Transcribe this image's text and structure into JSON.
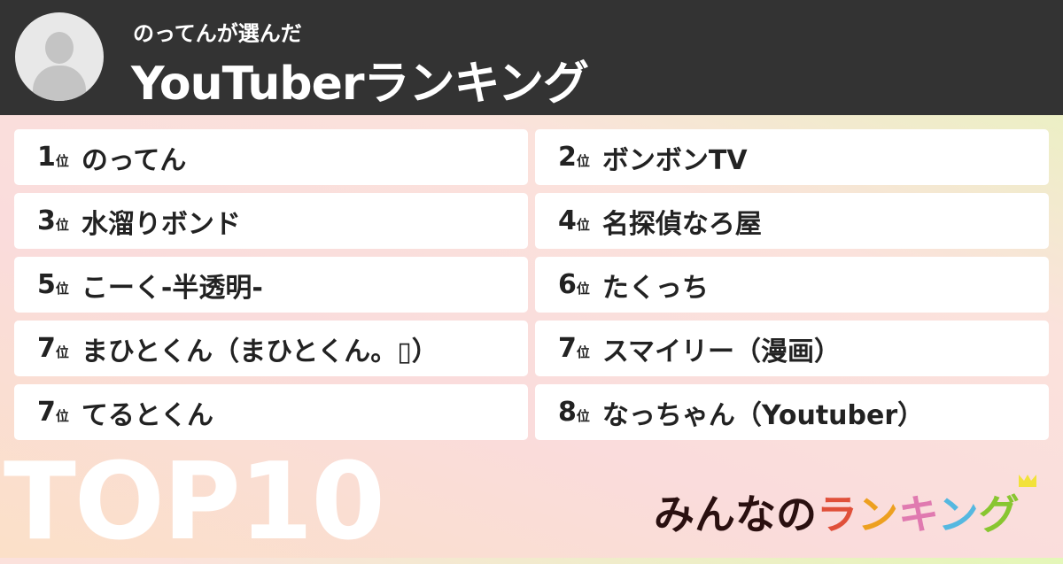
{
  "header": {
    "subtitle": "のってんが選んだ",
    "title": "YouTuberランキング"
  },
  "rank_suffix": "位",
  "items": [
    {
      "rank": "1",
      "name": "のってん"
    },
    {
      "rank": "2",
      "name": "ボンボンTV"
    },
    {
      "rank": "3",
      "name": "水溜りボンド"
    },
    {
      "rank": "4",
      "name": "名探偵なろ屋"
    },
    {
      "rank": "5",
      "name": "こーく-半透明-"
    },
    {
      "rank": "6",
      "name": "たくっち"
    },
    {
      "rank": "7",
      "name": "まひとくん（まひとくん。▯）"
    },
    {
      "rank": "7",
      "name": "スマイリー（漫画）"
    },
    {
      "rank": "7",
      "name": "てるとくん"
    },
    {
      "rank": "8",
      "name": "なっちゃん（Youtuber）"
    }
  ],
  "footer": {
    "top_label": "TOP10",
    "logo": {
      "part1": "みんなの",
      "chars": [
        "ラ",
        "ン",
        "キ",
        "ン",
        "グ"
      ],
      "colors": [
        "#e0503a",
        "#eda020",
        "#e07ab0",
        "#55b8e0",
        "#88c630"
      ]
    }
  }
}
